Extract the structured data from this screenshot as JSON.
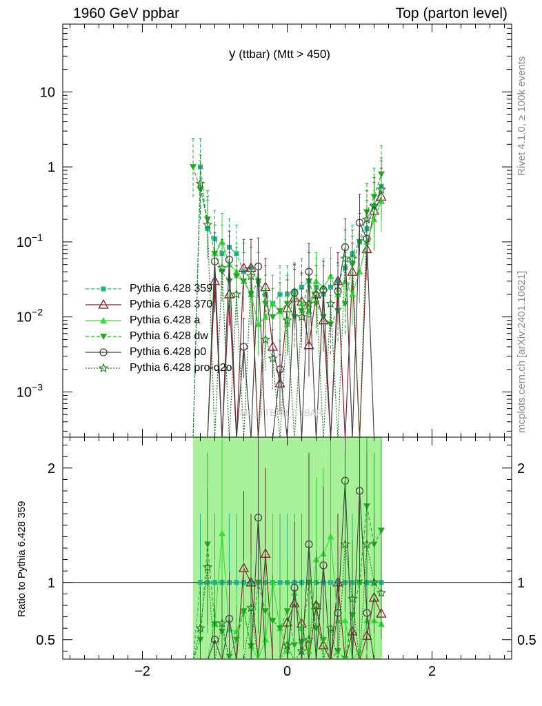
{
  "header": {
    "left": "1960 GeV ppbar",
    "right": "Top (parton level)"
  },
  "side_texts": {
    "rivet": "Rivet 4.1.0, ≥ 100k events",
    "mcplots": "mcplots.cern.ch [arXiv:2401.10621]"
  },
  "ratio_ylabel": "Ratio to Pythia 6.428 359",
  "watermark": "MC_TTBAR_TTBAR",
  "chart_data": {
    "type": "line",
    "title_main": "y",
    "title_rest": "(ttbar) (Mtt > 450)",
    "xlim": [
      -3.1,
      3.1
    ],
    "ylim_main": [
      0.00025,
      80
    ],
    "yscale_main": "log",
    "ylim_ratio": [
      0.33,
      2.27
    ],
    "xticks": [
      -2,
      0,
      2
    ],
    "xtick_labels": [
      "−2",
      "0",
      "2"
    ],
    "main_yticks": [
      0.001,
      0.01,
      0.1,
      1,
      10
    ],
    "main_ytick_labels": [
      {
        "base": "10",
        "exp": "−3"
      },
      {
        "base": "10",
        "exp": "−2"
      },
      {
        "base": "10",
        "exp": "−1"
      },
      {
        "base": "1",
        "exp": ""
      },
      {
        "base": "10",
        "exp": ""
      }
    ],
    "ratio_yticks": [
      0.5,
      1,
      2
    ],
    "ratio_ytick_labels": [
      "0.5",
      "1",
      "2"
    ],
    "legend_position": "left-middle",
    "x": [
      -1.3,
      -1.2,
      -1.1,
      -1.0,
      -0.9,
      -0.8,
      -0.7,
      -0.6,
      -0.5,
      -0.4,
      -0.3,
      -0.2,
      -0.1,
      0.0,
      0.1,
      0.2,
      0.3,
      0.4,
      0.5,
      0.6,
      0.7,
      0.8,
      0.9,
      1.0,
      1.1,
      1.2,
      1.3
    ],
    "band_lo_x": -1.3,
    "band_hi_x": 1.3,
    "series": [
      {
        "name": "Pythia 6.428 359",
        "color": "#1eb38a",
        "dash": "5,3",
        "marker": "square",
        "values": [
          0,
          1.0,
          0.15,
          0.11,
          0.07,
          0.085,
          0.07,
          0.04,
          0.045,
          0.03,
          0.02,
          0.015,
          0.02,
          0.02,
          0.022,
          0.025,
          0.03,
          0.025,
          0.02,
          0.025,
          0.03,
          0.045,
          0.07,
          0.1,
          0.15,
          0.3,
          0.55
        ]
      },
      {
        "name": "Pythia 6.428 370",
        "color": "#8b1a2e",
        "dash": "",
        "marker": "triangle-open",
        "values": [
          0,
          0,
          0,
          0.03,
          0,
          0.02,
          0,
          0.045,
          0.045,
          0,
          0.025,
          0.004,
          0.0013,
          0.013,
          0.018,
          0.016,
          0.0042,
          0.02,
          0.009,
          0,
          0.03,
          0,
          0.04,
          0,
          0.08,
          0.26,
          0.4
        ]
      },
      {
        "name": "Pythia 6.428 a",
        "color": "#33dd33",
        "dash": "",
        "marker": "triangle-up",
        "values": [
          0,
          0,
          0,
          0.07,
          0.1,
          0.05,
          0.04,
          0.03,
          0.02,
          0.008,
          0.01,
          0.015,
          0.012,
          0.008,
          0.02,
          0.015,
          0.012,
          0.03,
          0.025,
          0.035,
          0.02,
          0.03,
          0.02,
          0.04,
          0.1,
          0.2,
          0.35
        ]
      },
      {
        "name": "Pythia 6.428 dw",
        "color": "#22aa22",
        "dash": "5,3",
        "marker": "triangle-down",
        "values": [
          1.0,
          0.5,
          0.2,
          0.07,
          0.04,
          0.03,
          0.035,
          0.03,
          0.02,
          0.03,
          0.015,
          0.01,
          0.012,
          0.015,
          0.01,
          0.012,
          0.03,
          0.015,
          0.01,
          0.008,
          0.012,
          0.015,
          0.05,
          0.1,
          0.25,
          0.4,
          0.8
        ]
      },
      {
        "name": "Pythia 6.428 p0",
        "color": "#444444",
        "dash": "",
        "marker": "circle-open",
        "values": [
          0,
          0,
          0,
          0.055,
          0,
          0.058,
          0,
          0.004,
          0,
          0.047,
          0,
          0,
          0.002,
          0,
          0.021,
          0,
          0.04,
          0,
          0.023,
          0,
          0.022,
          0.085,
          0,
          0.18,
          0.11,
          0,
          0
        ]
      },
      {
        "name": "Pythia 6.428 pro-q2o",
        "color": "#1f7a1f",
        "dash": "2,2",
        "marker": "star-open",
        "values": [
          0,
          0.6,
          0.17,
          0,
          0.045,
          0,
          0.02,
          0,
          0.035,
          0,
          0.005,
          0.0028,
          0,
          0.009,
          0,
          0.01,
          0.015,
          0.02,
          0,
          0.015,
          0,
          0.06,
          0.06,
          0,
          0.2,
          0.3,
          0.5
        ]
      }
    ]
  }
}
